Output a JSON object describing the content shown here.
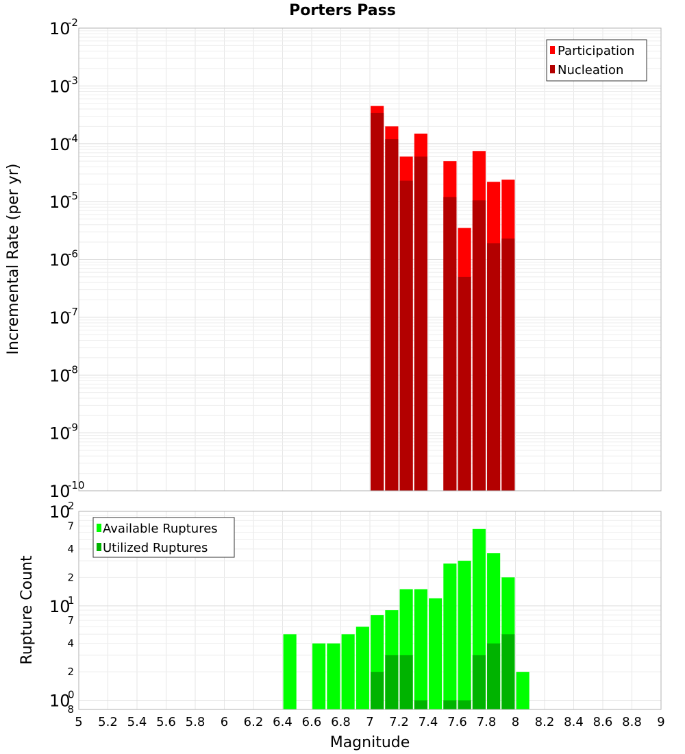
{
  "chart_data": [
    {
      "type": "bar",
      "title": "Porters Pass",
      "xlabel": "",
      "ylabel": "Incremental Rate (per yr)",
      "yscale": "log",
      "xlim": [
        5,
        9
      ],
      "ylim": [
        1e-10,
        0.01
      ],
      "y_ticks": [
        {
          "base": "10",
          "exp": "-2"
        },
        {
          "base": "10",
          "exp": "-3"
        },
        {
          "base": "10",
          "exp": "-4"
        },
        {
          "base": "10",
          "exp": "-5"
        },
        {
          "base": "10",
          "exp": "-6"
        },
        {
          "base": "10",
          "exp": "-7"
        },
        {
          "base": "10",
          "exp": "-8"
        },
        {
          "base": "10",
          "exp": "-9"
        },
        {
          "base": "10",
          "exp": "-10"
        }
      ],
      "grid": true,
      "legend_position": "top-right",
      "bar_width": 0.09,
      "series": [
        {
          "name": "Participation",
          "color": "#ff0000",
          "x": [
            7.05,
            7.15,
            7.25,
            7.35,
            7.55,
            7.65,
            7.75,
            7.85,
            7.95
          ],
          "values": [
            0.00045,
            0.0002,
            6e-05,
            0.00015,
            5e-05,
            3.5e-06,
            7.5e-05,
            2.2e-05,
            2.4e-05
          ]
        },
        {
          "name": "Nucleation",
          "color": "#b30000",
          "x": [
            7.05,
            7.15,
            7.25,
            7.35,
            7.55,
            7.65,
            7.75,
            7.85,
            7.95
          ],
          "values": [
            0.00034,
            0.00012,
            2.3e-05,
            6e-05,
            1.2e-05,
            5e-07,
            1.05e-05,
            1.9e-06,
            2.3e-06
          ]
        }
      ]
    },
    {
      "type": "bar",
      "title": "",
      "xlabel": "Magnitude",
      "ylabel": "Rupture Count",
      "yscale": "log",
      "xlim": [
        5,
        9
      ],
      "ylim": [
        0.8,
        100
      ],
      "x_ticks": [
        "5",
        "5.2",
        "5.4",
        "5.6",
        "5.8",
        "6",
        "6.2",
        "6.4",
        "6.6",
        "6.8",
        "7",
        "7.2",
        "7.4",
        "7.6",
        "7.8",
        "8",
        "8.2",
        "8.4",
        "8.6",
        "8.8",
        "9"
      ],
      "y_major_ticks": [
        {
          "base": "10",
          "exp": "2"
        },
        {
          "base": "10",
          "exp": "1"
        },
        {
          "base": "10",
          "exp": "0"
        }
      ],
      "y_minor_ticks": [
        "7",
        "4",
        "2",
        "7",
        "4",
        "2",
        "8"
      ],
      "grid": true,
      "legend_position": "top-left",
      "bar_width": 0.09,
      "series": [
        {
          "name": "Available Ruptures",
          "color": "#00ff00",
          "x": [
            6.45,
            6.65,
            6.75,
            6.85,
            6.95,
            7.05,
            7.15,
            7.25,
            7.35,
            7.45,
            7.55,
            7.65,
            7.75,
            7.85,
            7.95,
            8.05
          ],
          "values": [
            5,
            4,
            4,
            5,
            6,
            8,
            9,
            15,
            15,
            12,
            28,
            30,
            65,
            36,
            20,
            2
          ]
        },
        {
          "name": "Utilized Ruptures",
          "color": "#00b300",
          "x": [
            7.05,
            7.15,
            7.25,
            7.35,
            7.55,
            7.65,
            7.75,
            7.85,
            7.95
          ],
          "values": [
            2,
            3,
            3,
            1,
            1,
            1,
            3,
            4,
            5
          ]
        }
      ]
    }
  ]
}
